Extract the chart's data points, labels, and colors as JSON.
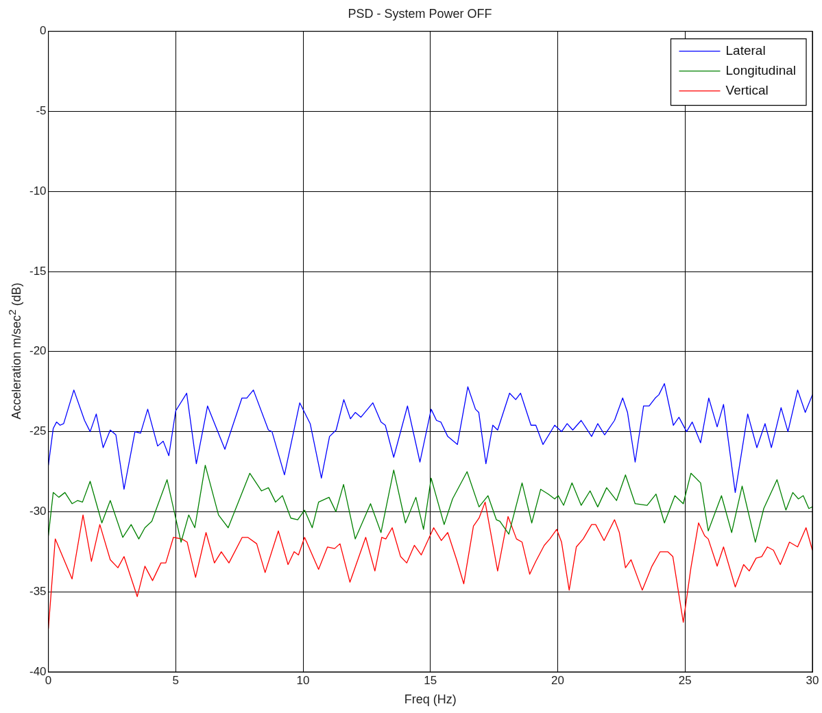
{
  "chart_data": {
    "type": "line",
    "title": "PSD - System Power OFF",
    "xlabel": "Freq (Hz)",
    "ylabel": "Acceleration m/sec$^{2}$ (dB)",
    "xlim": [
      0,
      30
    ],
    "ylim": [
      -40,
      0
    ],
    "xticks": [
      0,
      5,
      10,
      15,
      20,
      25,
      30
    ],
    "yticks": [
      -40,
      -35,
      -30,
      -25,
      -20,
      -15,
      -10,
      -5,
      0
    ],
    "grid": true,
    "legend": "top right",
    "marker": "none",
    "line_style": "solid",
    "series": [
      {
        "name": "Lateral",
        "color": "#0000ff",
        "x": [
          0,
          0.19,
          0.32,
          0.46,
          0.6,
          1.0,
          1.42,
          1.64,
          1.88,
          2.15,
          2.43,
          2.65,
          2.97,
          3.4,
          3.62,
          3.9,
          4.29,
          4.51,
          4.73,
          5.0,
          5.43,
          5.81,
          6.25,
          6.93,
          7.6,
          7.79,
          8.05,
          8.64,
          8.78,
          9.27,
          9.87,
          10.28,
          10.72,
          11.04,
          11.3,
          11.6,
          11.86,
          12.05,
          12.27,
          12.74,
          13.06,
          13.23,
          13.56,
          14.1,
          14.59,
          15.03,
          15.24,
          15.41,
          15.68,
          16.06,
          16.47,
          16.77,
          16.9,
          17.18,
          17.45,
          17.64,
          18.11,
          18.35,
          18.54,
          18.95,
          19.14,
          19.42,
          19.88,
          20.15,
          20.37,
          20.59,
          20.92,
          21.33,
          21.57,
          21.84,
          22.23,
          22.55,
          22.74,
          23.04,
          23.37,
          23.59,
          23.83,
          23.97,
          24.19,
          24.54,
          24.76,
          25.06,
          25.28,
          25.61,
          25.93,
          26.26,
          26.51,
          26.97,
          27.46,
          27.82,
          28.14,
          28.39,
          28.77,
          29.04,
          29.42,
          29.72,
          30
        ],
        "values": [
          -27.1,
          -24.8,
          -24.4,
          -24.6,
          -24.5,
          -22.4,
          -24.3,
          -25.0,
          -23.9,
          -26.0,
          -24.9,
          -25.2,
          -28.6,
          -25.0,
          -25.1,
          -23.6,
          -25.9,
          -25.6,
          -26.5,
          -23.7,
          -22.6,
          -27.0,
          -23.4,
          -26.1,
          -22.9,
          -22.9,
          -22.4,
          -24.9,
          -25.0,
          -27.7,
          -23.2,
          -24.5,
          -27.9,
          -25.3,
          -24.9,
          -23.0,
          -24.2,
          -23.8,
          -24.1,
          -23.2,
          -24.4,
          -24.6,
          -26.6,
          -23.4,
          -26.9,
          -23.6,
          -24.3,
          -24.4,
          -25.3,
          -25.8,
          -22.2,
          -23.6,
          -23.8,
          -27.0,
          -24.6,
          -24.9,
          -22.6,
          -23.0,
          -22.6,
          -24.6,
          -24.6,
          -25.8,
          -24.6,
          -25.0,
          -24.5,
          -24.9,
          -24.3,
          -25.3,
          -24.5,
          -25.2,
          -24.3,
          -22.9,
          -23.8,
          -26.9,
          -23.4,
          -23.4,
          -22.9,
          -22.7,
          -22.0,
          -24.6,
          -24.1,
          -25.0,
          -24.4,
          -25.7,
          -22.9,
          -24.7,
          -23.3,
          -28.8,
          -23.9,
          -26.0,
          -24.5,
          -26.0,
          -23.5,
          -25.0,
          -22.4,
          -23.8,
          -22.7
        ]
      },
      {
        "name": "Longitudinal",
        "color": "#008000",
        "x": [
          0,
          0.19,
          0.41,
          0.65,
          0.93,
          1.15,
          1.34,
          1.64,
          2.1,
          2.43,
          2.92,
          3.25,
          3.55,
          3.79,
          4.06,
          4.66,
          5.21,
          5.51,
          5.75,
          6.16,
          6.68,
          7.06,
          7.91,
          8.37,
          8.64,
          8.92,
          9.19,
          9.52,
          9.79,
          10.06,
          10.36,
          10.61,
          11.02,
          11.29,
          11.59,
          12.05,
          12.65,
          13.06,
          13.56,
          14.02,
          14.43,
          14.73,
          15.03,
          15.54,
          15.87,
          16.44,
          16.91,
          17.26,
          17.59,
          17.73,
          18.08,
          18.6,
          18.98,
          19.33,
          19.63,
          19.88,
          20.02,
          20.23,
          20.56,
          20.92,
          21.27,
          21.57,
          21.92,
          22.31,
          22.66,
          23.04,
          23.51,
          23.86,
          24.19,
          24.6,
          24.93,
          25.23,
          25.61,
          25.91,
          26.43,
          26.83,
          27.24,
          27.76,
          28.09,
          28.61,
          28.96,
          29.23,
          29.45,
          29.64,
          29.86,
          30
        ],
        "values": [
          -31.5,
          -28.8,
          -29.1,
          -28.8,
          -29.5,
          -29.3,
          -29.4,
          -28.1,
          -30.7,
          -29.3,
          -31.6,
          -30.8,
          -31.7,
          -31.0,
          -30.6,
          -28.0,
          -31.9,
          -30.2,
          -31.0,
          -27.1,
          -30.2,
          -31.0,
          -27.6,
          -28.7,
          -28.5,
          -29.4,
          -29.0,
          -30.4,
          -30.5,
          -29.9,
          -31.0,
          -29.4,
          -29.1,
          -30.0,
          -28.3,
          -31.7,
          -29.5,
          -31.3,
          -27.4,
          -30.7,
          -29.1,
          -31.1,
          -27.9,
          -30.8,
          -29.2,
          -27.5,
          -29.7,
          -29.0,
          -30.5,
          -30.6,
          -31.4,
          -28.2,
          -30.7,
          -28.6,
          -28.9,
          -29.2,
          -29.0,
          -29.6,
          -28.2,
          -29.6,
          -28.7,
          -29.7,
          -28.5,
          -29.3,
          -27.7,
          -29.5,
          -29.6,
          -28.9,
          -30.7,
          -29.0,
          -29.5,
          -27.6,
          -28.2,
          -31.2,
          -29.0,
          -31.3,
          -28.4,
          -31.9,
          -29.8,
          -28.0,
          -29.9,
          -28.8,
          -29.2,
          -29.0,
          -29.8,
          -29.7
        ]
      },
      {
        "name": "Vertical",
        "color": "#ff0000",
        "x": [
          0,
          0.27,
          0.93,
          1.36,
          1.69,
          2.02,
          2.43,
          2.73,
          2.97,
          3.49,
          3.79,
          4.09,
          4.42,
          4.61,
          4.91,
          5.24,
          5.45,
          5.78,
          6.19,
          6.52,
          6.79,
          7.09,
          7.61,
          7.83,
          8.18,
          8.51,
          9.03,
          9.41,
          9.65,
          9.82,
          10.06,
          10.61,
          10.96,
          11.24,
          11.45,
          11.84,
          12.46,
          12.82,
          13.09,
          13.25,
          13.5,
          13.83,
          14.07,
          14.37,
          14.64,
          15.13,
          15.43,
          15.68,
          16.03,
          16.31,
          16.69,
          16.91,
          17.15,
          17.64,
          18.05,
          18.38,
          18.6,
          18.9,
          19.14,
          19.47,
          19.69,
          19.96,
          20.15,
          20.45,
          20.73,
          21.0,
          21.33,
          21.49,
          21.82,
          22.23,
          22.42,
          22.66,
          22.88,
          23.32,
          23.7,
          24.02,
          24.32,
          24.52,
          24.93,
          25.23,
          25.53,
          25.77,
          25.91,
          26.26,
          26.51,
          26.97,
          27.3,
          27.52,
          27.79,
          28.01,
          28.23,
          28.47,
          28.74,
          29.1,
          29.42,
          29.75,
          30
        ],
        "values": [
          -37.3,
          -31.7,
          -34.2,
          -30.2,
          -33.1,
          -30.8,
          -33.0,
          -33.5,
          -32.8,
          -35.3,
          -33.4,
          -34.3,
          -33.2,
          -33.2,
          -31.6,
          -31.7,
          -31.9,
          -34.1,
          -31.3,
          -33.2,
          -32.5,
          -33.2,
          -31.6,
          -31.6,
          -32.0,
          -33.8,
          -31.2,
          -33.3,
          -32.5,
          -32.7,
          -31.6,
          -33.6,
          -32.2,
          -32.3,
          -32.0,
          -34.4,
          -31.6,
          -33.7,
          -31.6,
          -31.7,
          -31.0,
          -32.8,
          -33.2,
          -32.1,
          -32.7,
          -31.0,
          -31.8,
          -31.3,
          -33.0,
          -34.5,
          -30.9,
          -30.4,
          -29.4,
          -33.7,
          -30.3,
          -31.7,
          -31.9,
          -33.9,
          -33.1,
          -32.1,
          -31.7,
          -31.1,
          -31.9,
          -34.9,
          -32.2,
          -31.7,
          -30.8,
          -30.8,
          -31.8,
          -30.5,
          -31.3,
          -33.5,
          -33.0,
          -34.9,
          -33.4,
          -32.5,
          -32.5,
          -32.8,
          -36.9,
          -33.5,
          -30.7,
          -31.5,
          -31.7,
          -33.4,
          -32.2,
          -34.7,
          -33.3,
          -33.7,
          -32.9,
          -32.8,
          -32.2,
          -32.4,
          -33.3,
          -31.9,
          -32.2,
          -31.0,
          -32.4
        ]
      }
    ]
  }
}
